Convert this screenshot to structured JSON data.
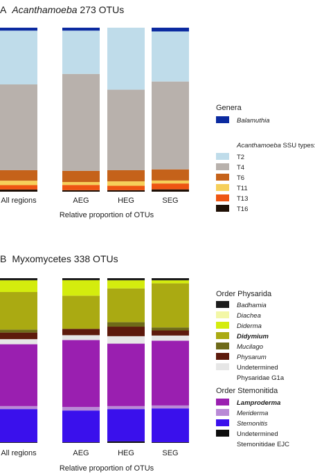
{
  "panel_a": {
    "letter": "A",
    "title_italic": "Acanthamoeba",
    "title_rest": "273 OTUs"
  },
  "panel_b": {
    "letter": "B",
    "title_text": "Myxomycetes 338 OTUs"
  },
  "chart_data": [
    {
      "type": "bar",
      "stacked": true,
      "panel": "A",
      "title": "Acanthamoeba 273 OTUs",
      "xlabel": "Relative proportion of OTUs",
      "categories": [
        "All regions",
        "AEG",
        "HEG",
        "SEG"
      ],
      "legend": {
        "title": "Genera",
        "subtitle": "Acanthamoeba SSU types:",
        "placement": "right"
      },
      "series": [
        {
          "name": "T16",
          "color": "#1e0f05",
          "style": "normal",
          "values": [
            0.013,
            0.009,
            0.009,
            0.014
          ]
        },
        {
          "name": "T13",
          "color": "#ee5512",
          "style": "normal",
          "values": [
            0.027,
            0.032,
            0.027,
            0.036
          ]
        },
        {
          "name": "T11",
          "color": "#f6cf5a",
          "style": "normal",
          "values": [
            0.027,
            0.018,
            0.027,
            0.018
          ]
        },
        {
          "name": "T6",
          "color": "#c5621a",
          "style": "normal",
          "values": [
            0.064,
            0.068,
            0.068,
            0.068
          ]
        },
        {
          "name": "T4",
          "color": "#b8b1ac",
          "style": "normal",
          "values": [
            0.523,
            0.591,
            0.491,
            0.536
          ]
        },
        {
          "name": "T2",
          "color": "#bfdcea",
          "style": "normal",
          "values": [
            0.328,
            0.264,
            0.378,
            0.305
          ]
        },
        {
          "name": "Balamuthia",
          "color": "#0b2aa0",
          "style": "italic",
          "values": [
            0.018,
            0.018,
            0.0,
            0.023
          ]
        }
      ]
    },
    {
      "type": "bar",
      "stacked": true,
      "panel": "B",
      "title": "Myxomycetes 338 OTUs",
      "xlabel": "Relative proportion of OTUs",
      "categories": [
        "All regions",
        "AEG",
        "HEG",
        "SEG"
      ],
      "legend": {
        "groups": [
          {
            "title": "Order Physarida",
            "items": [
              "Badhamia",
              "Diachea",
              "Diderma",
              "Didymium",
              "Mucilago",
              "Physarum",
              "Undetermined Physaridae G1a"
            ]
          },
          {
            "title": "Order Stemonitida",
            "items": [
              "Lamproderma",
              "Meriderma",
              "Stemonitis",
              "Undetermined Stemonitidae EJC"
            ]
          }
        ],
        "placement": "right"
      },
      "series": [
        {
          "name": "Undetermined Stemonitidae EJC",
          "line1": "Undetermined",
          "line2": "Stemonitidae EJC",
          "color": "#0d0d0d",
          "style": "normal",
          "values": [
            0.004,
            0.004,
            0.009,
            0.004
          ]
        },
        {
          "name": "Stemonitis",
          "color": "#3a10ec",
          "style": "italic",
          "values": [
            0.201,
            0.201,
            0.196,
            0.205
          ]
        },
        {
          "name": "Meriderma",
          "color": "#b98ad6",
          "style": "italic",
          "values": [
            0.018,
            0.022,
            0.018,
            0.018
          ]
        },
        {
          "name": "Lamproderma",
          "color": "#9a1fb0",
          "style": "bolditalic",
          "values": [
            0.375,
            0.424,
            0.379,
            0.393
          ]
        },
        {
          "name": "Undetermined Physaridae G1a",
          "line1": "Undetermined",
          "line2": "Physaridae G1a",
          "color": "#e6e6e6",
          "style": "normal",
          "values": [
            0.031,
            0.031,
            0.045,
            0.031
          ]
        },
        {
          "name": "Physarum",
          "color": "#5d1a0c",
          "style": "italic",
          "values": [
            0.04,
            0.04,
            0.058,
            0.031
          ]
        },
        {
          "name": "Mucilago",
          "color": "#6e6a19",
          "style": "italic",
          "values": [
            0.018,
            0.0,
            0.027,
            0.018
          ]
        },
        {
          "name": "Didymium",
          "color": "#aaaa12",
          "style": "bolditalic",
          "values": [
            0.228,
            0.21,
            0.205,
            0.268
          ]
        },
        {
          "name": "Diderma",
          "color": "#d4ec0e",
          "style": "italic",
          "values": [
            0.071,
            0.098,
            0.049,
            0.018
          ]
        },
        {
          "name": "Diachea",
          "color": "#f3f7a6",
          "style": "italic",
          "values": [
            0.0,
            0.0,
            0.0,
            0.0
          ]
        },
        {
          "name": "Badhamia",
          "color": "#1c1c1c",
          "style": "italic",
          "values": [
            0.013,
            0.013,
            0.013,
            0.013
          ]
        }
      ]
    }
  ]
}
